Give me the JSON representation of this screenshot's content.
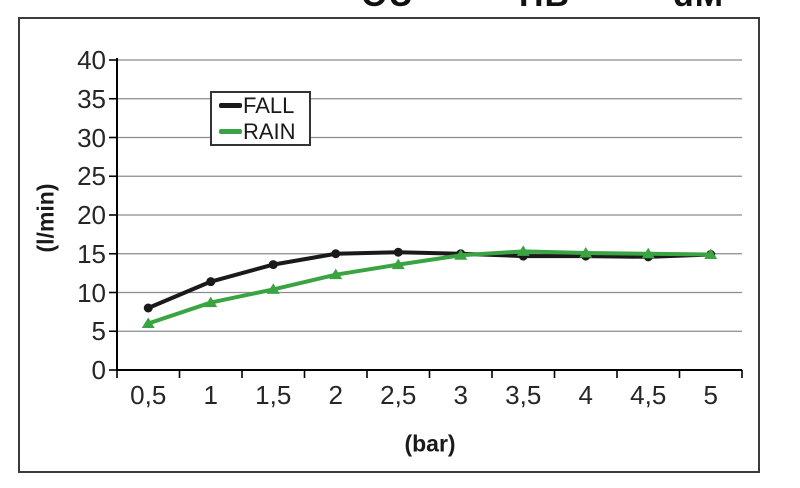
{
  "top_fragments": [
    {
      "text": "OU"
    },
    {
      "text": "HB"
    },
    {
      "text": "dM"
    }
  ],
  "chart_data": {
    "type": "line",
    "title": "",
    "xlabel": "(bar)",
    "ylabel": "(l/min)",
    "x_tick_labels": [
      "0,5",
      "1",
      "1,5",
      "2",
      "2,5",
      "3",
      "3,5",
      "4",
      "4,5",
      "5"
    ],
    "x_values": [
      0.5,
      1,
      1.5,
      2,
      2.5,
      3,
      3.5,
      4,
      4.5,
      5
    ],
    "y_ticks": [
      0,
      5,
      10,
      15,
      20,
      25,
      30,
      35,
      40
    ],
    "ylim": [
      0,
      40
    ],
    "grid": "horizontal-only",
    "legend_position": "inside-top-left",
    "series": [
      {
        "name": "FALL",
        "color": "#1a1a1a",
        "marker": "circle",
        "values": [
          8.0,
          11.4,
          13.6,
          15.0,
          15.2,
          15.0,
          14.7,
          14.7,
          14.6,
          14.9
        ]
      },
      {
        "name": "RAIN",
        "color": "#3aa442",
        "marker": "triangle",
        "values": [
          6.0,
          8.7,
          10.4,
          12.3,
          13.6,
          14.8,
          15.3,
          15.1,
          15.0,
          14.9
        ]
      }
    ]
  }
}
